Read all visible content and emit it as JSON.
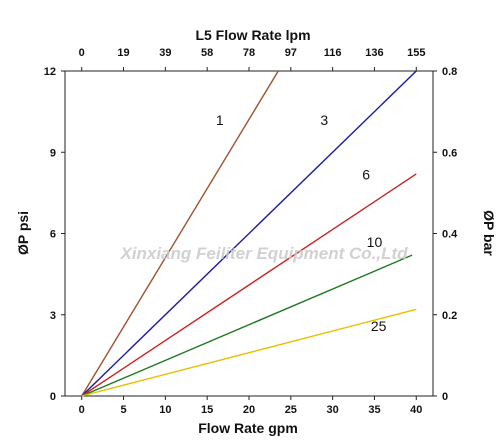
{
  "chart_data": {
    "type": "line",
    "title": "L5 Flow Rate lpm",
    "xlabel": "Flow Rate gpm",
    "ylabel": "ØP psi",
    "y2label": "ØP bar",
    "xlim": [
      -2,
      42
    ],
    "ylim": [
      0,
      12
    ],
    "x_ticks": [
      0,
      5,
      10,
      15,
      20,
      25,
      30,
      35,
      40
    ],
    "x2_ticks": [
      "0",
      "19",
      "39",
      "58",
      "78",
      "97",
      "116",
      "136",
      "155"
    ],
    "y_ticks": [
      0,
      3,
      6,
      9,
      12
    ],
    "y2_ticks": [
      "0",
      "0.2",
      "0.4",
      "0.6",
      "0.8"
    ],
    "grid": false,
    "series": [
      {
        "name": "1",
        "color": "#a0522d",
        "x": [
          0,
          23.5
        ],
        "y": [
          0,
          12
        ]
      },
      {
        "name": "3",
        "color": "#1a1aa6",
        "x": [
          0,
          40
        ],
        "y": [
          0,
          12
        ]
      },
      {
        "name": "6",
        "color": "#cc2222",
        "x": [
          0,
          40
        ],
        "y": [
          0,
          8.2
        ]
      },
      {
        "name": "10",
        "color": "#1f7a1f",
        "x": [
          0,
          39.5
        ],
        "y": [
          0,
          5.2
        ]
      },
      {
        "name": "25",
        "color": "#e8c000",
        "x": [
          0,
          40
        ],
        "y": [
          0,
          3.2
        ]
      }
    ],
    "series_label_positions": [
      {
        "x": 16.5,
        "y": 10.0
      },
      {
        "x": 29,
        "y": 10.0
      },
      {
        "x": 34,
        "y": 8.0
      },
      {
        "x": 35,
        "y": 5.5
      },
      {
        "x": 35.5,
        "y": 2.4
      }
    ]
  },
  "watermark": "Xinxiang Feiliter Equipment Co.,Ltd"
}
